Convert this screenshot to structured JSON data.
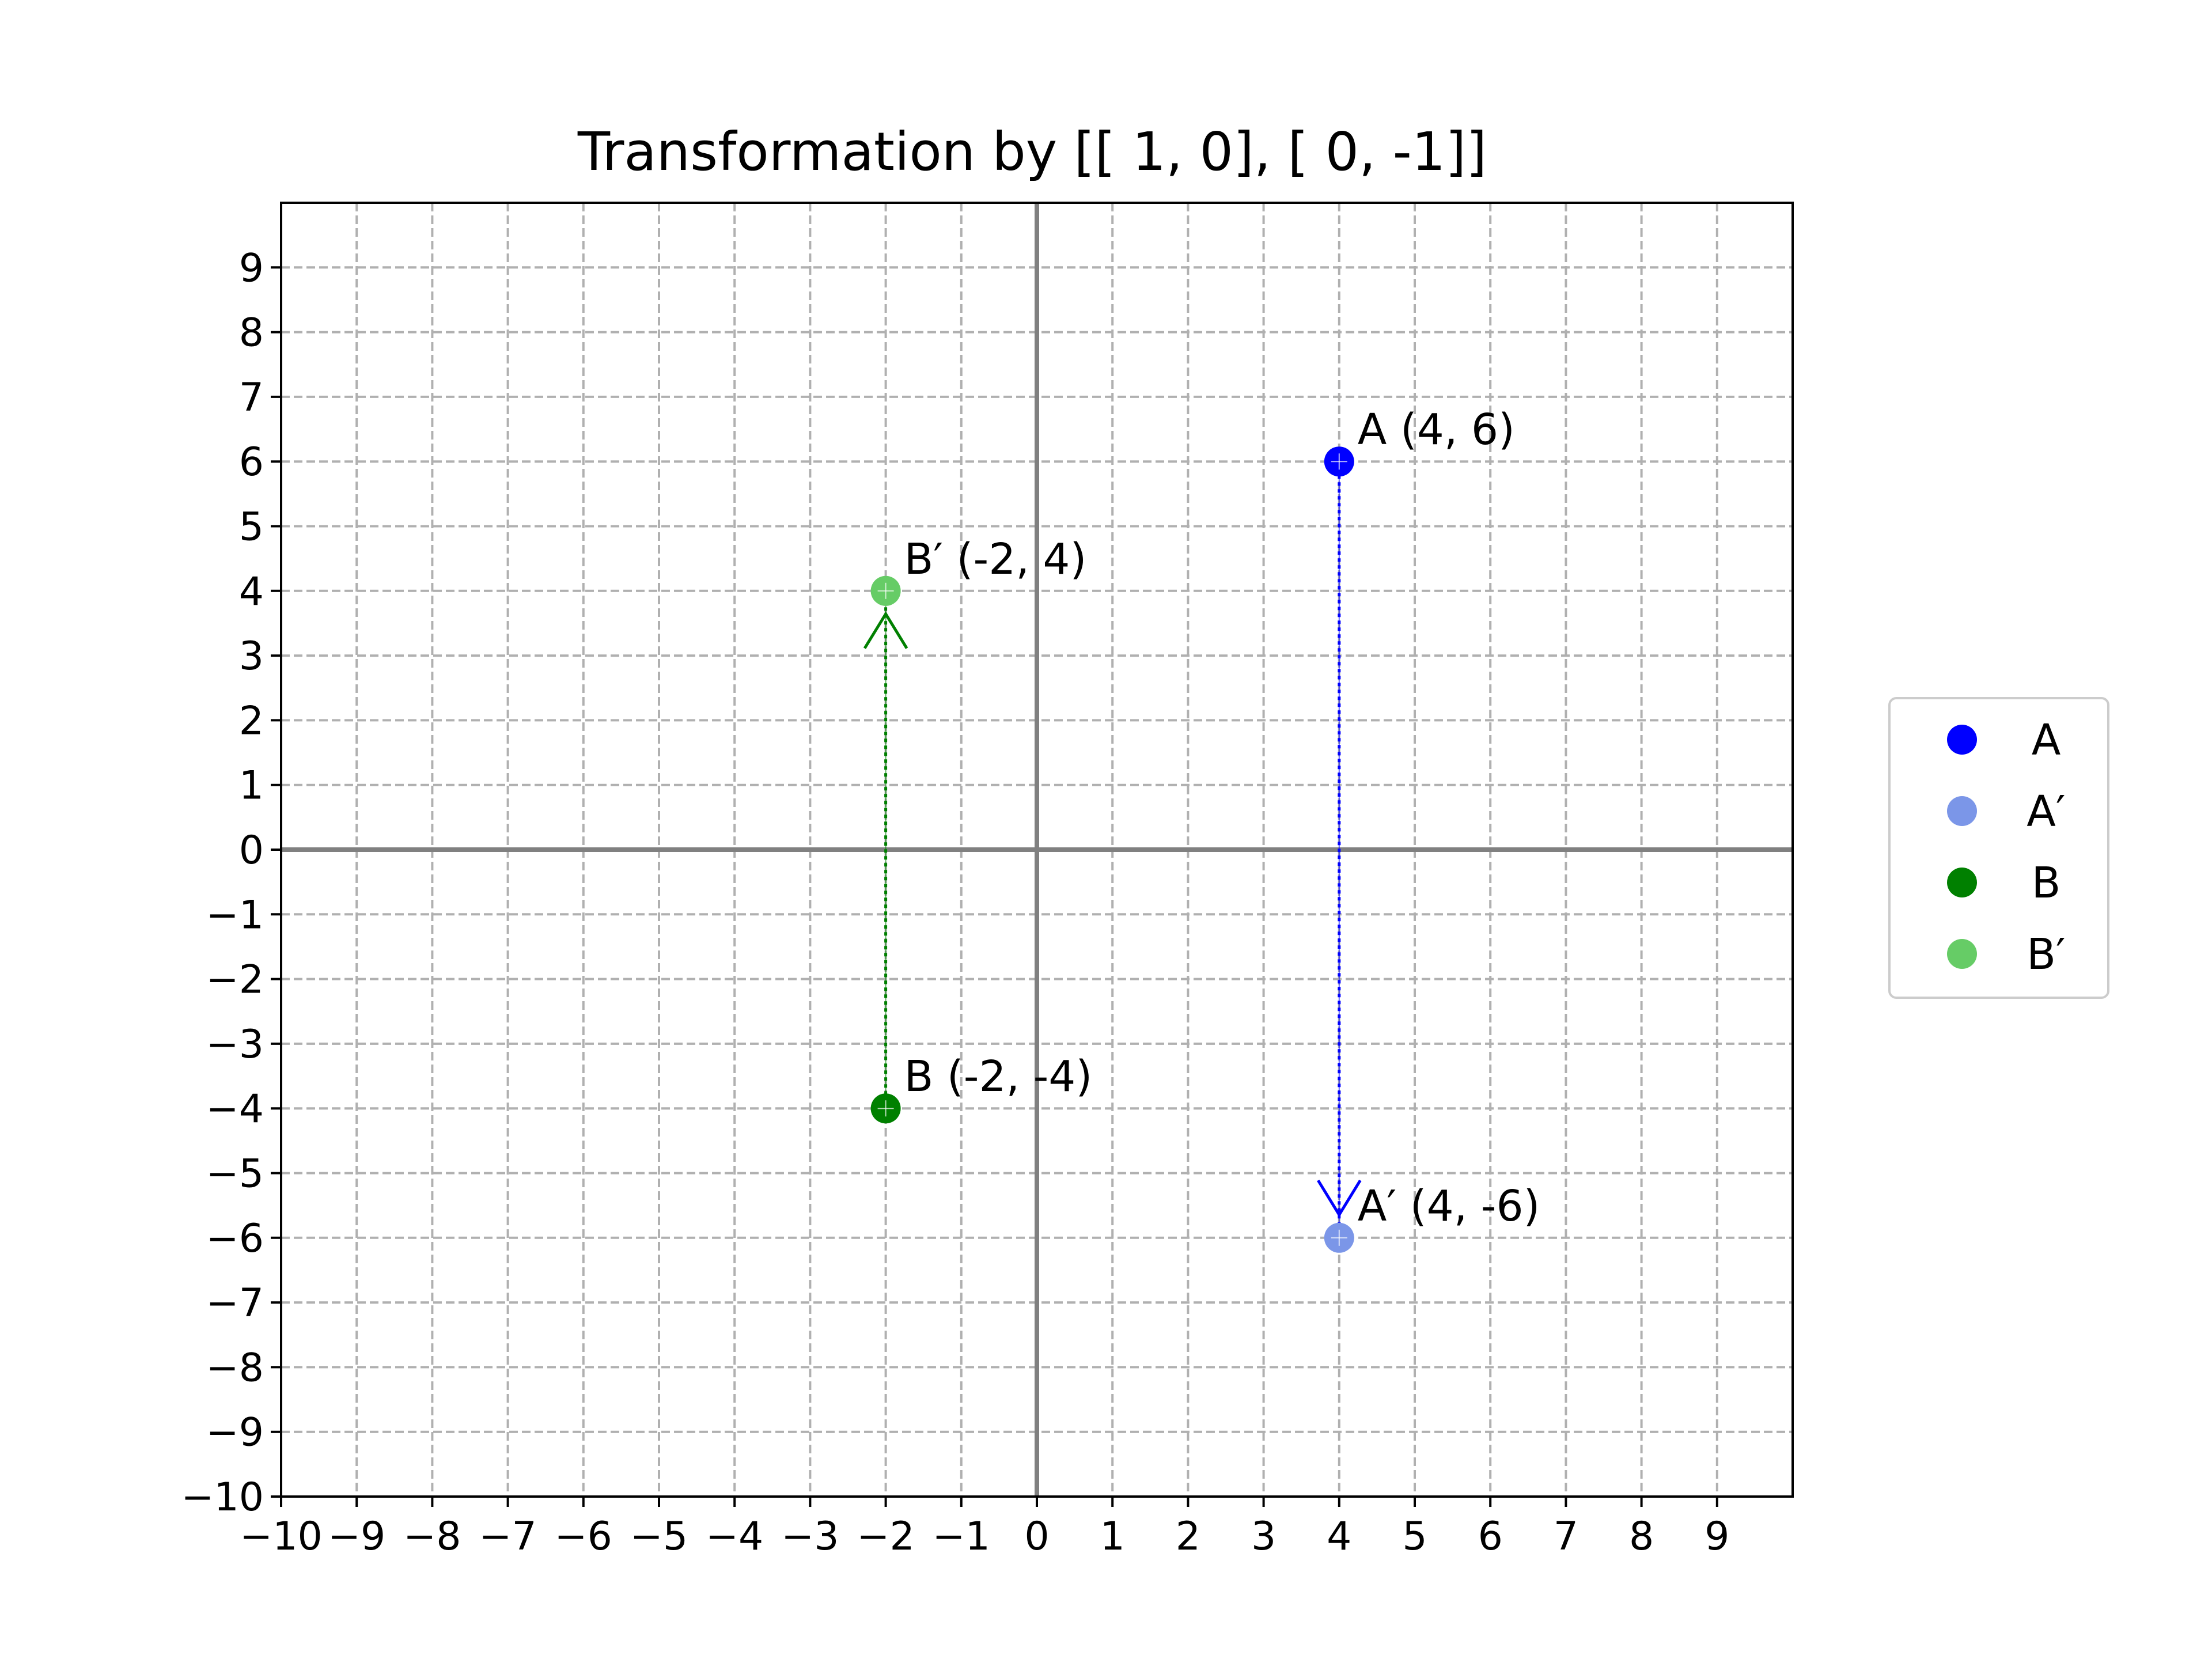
{
  "chart_data": {
    "type": "scatter",
    "title": "Transformation by [[ 1,  0],  [ 0, -1]]",
    "xlabel": "",
    "ylabel": "",
    "xlim": [
      -10,
      10
    ],
    "ylim": [
      -10,
      10
    ],
    "x_ticks": [
      -10,
      -9,
      -8,
      -7,
      -6,
      -5,
      -4,
      -3,
      -2,
      -1,
      0,
      1,
      2,
      3,
      4,
      5,
      6,
      7,
      8,
      9
    ],
    "y_ticks": [
      -10,
      -9,
      -8,
      -7,
      -6,
      -5,
      -4,
      -3,
      -2,
      -1,
      0,
      1,
      2,
      3,
      4,
      5,
      6,
      7,
      8,
      9
    ],
    "x_tick_labels": [
      "−10",
      "−9",
      "−8",
      "−7",
      "−6",
      "−5",
      "−4",
      "−3",
      "−2",
      "−1",
      "0",
      "1",
      "2",
      "3",
      "4",
      "5",
      "6",
      "7",
      "8",
      "9"
    ],
    "y_tick_labels": [
      "−10",
      "−9",
      "−8",
      "−7",
      "−6",
      "−5",
      "−4",
      "−3",
      "−2",
      "−1",
      "0",
      "1",
      "2",
      "3",
      "4",
      "5",
      "6",
      "7",
      "8",
      "9"
    ],
    "grid": true,
    "legend_position": "center-right, outside",
    "points": [
      {
        "name": "A",
        "x": 4,
        "y": 6,
        "label": "A (4, 6)",
        "color": "#0000ff"
      },
      {
        "name": "A′",
        "x": 4,
        "y": -6,
        "label": "A′ (4, -6)",
        "color": "#7b96e8"
      },
      {
        "name": "B",
        "x": -2,
        "y": -4,
        "label": "B (-2, -4)",
        "color": "#008000"
      },
      {
        "name": "B′",
        "x": -2,
        "y": 4,
        "label": "B′ (-2, 4)",
        "color": "#66cc66"
      }
    ],
    "arrows": [
      {
        "from": [
          4,
          6
        ],
        "to": [
          4,
          -6
        ],
        "color": "#0000ff"
      },
      {
        "from": [
          -2,
          -4
        ],
        "to": [
          -2,
          4
        ],
        "color": "#008000"
      }
    ],
    "legend": [
      {
        "name": "A",
        "color": "#0000ff"
      },
      {
        "name": "A′",
        "color": "#7b96e8"
      },
      {
        "name": "B",
        "color": "#008000"
      },
      {
        "name": "B′",
        "color": "#66cc66"
      }
    ]
  }
}
